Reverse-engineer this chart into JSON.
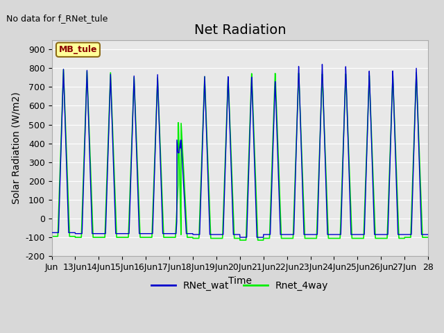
{
  "title": "Net Radiation",
  "no_data_text": "No data for f_RNet_tule",
  "xlabel": "Time",
  "ylabel": "Solar Radiation (W/m2)",
  "ylim": [
    -200,
    950
  ],
  "yticks": [
    -200,
    -100,
    0,
    100,
    200,
    300,
    400,
    500,
    600,
    700,
    800,
    900
  ],
  "x_start": 12,
  "x_end": 28,
  "xtick_positions": [
    12,
    13,
    14,
    15,
    16,
    17,
    18,
    19,
    20,
    21,
    22,
    23,
    24,
    25,
    26,
    27,
    28
  ],
  "xtick_labels": [
    "Jun",
    "13Jun",
    "14Jun",
    "15Jun",
    "16Jun",
    "17Jun",
    "18Jun",
    "19Jun",
    "20Jun",
    "21Jun",
    "22Jun",
    "23Jun",
    "24Jun",
    "25Jun",
    "26Jun",
    "27Jun",
    "28"
  ],
  "fig_bg_color": "#d8d8d8",
  "plot_bg_color": "#e8e8e8",
  "grid_color": "white",
  "line1_color": "#0000cc",
  "line2_color": "#00ee00",
  "line1_label": "RNet_wat",
  "line2_label": "Rnet_4way",
  "legend_box_color": "#ffff99",
  "legend_box_edge": "#8b6914",
  "legend_box_text": "MB_tule",
  "legend_box_text_color": "#8b0000",
  "title_fontsize": 14,
  "label_fontsize": 10,
  "tick_fontsize": 9,
  "night_value": -75,
  "day_peak_blue": [
    795,
    790,
    770,
    762,
    770,
    420,
    762,
    762,
    760,
    735,
    815,
    825,
    812,
    787,
    787,
    800
  ],
  "day_peak_green": [
    793,
    785,
    778,
    755,
    752,
    510,
    760,
    758,
    778,
    778,
    778,
    772,
    772,
    762,
    762,
    777
  ],
  "night_blue": [
    -75,
    -80,
    -80,
    -80,
    -80,
    -80,
    -85,
    -85,
    -100,
    -85,
    -85,
    -85,
    -85,
    -85,
    -85,
    -85
  ],
  "night_green": [
    -95,
    -100,
    -100,
    -100,
    -100,
    -100,
    -105,
    -105,
    -115,
    -105,
    -105,
    -105,
    -105,
    -105,
    -105,
    -100
  ]
}
